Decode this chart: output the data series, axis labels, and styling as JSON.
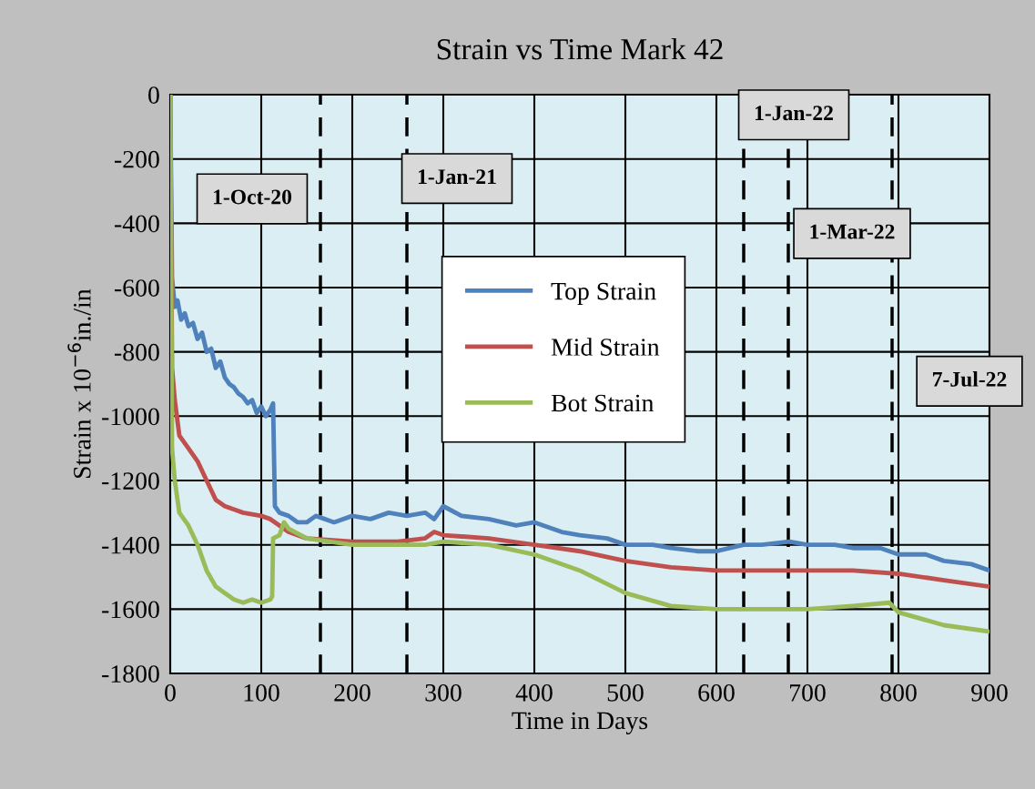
{
  "chart_data": {
    "type": "line",
    "title": "Strain vs Time Mark 42",
    "xlabel": "Time in Days",
    "ylabel": "Strain x 10$^{−6}$in./in",
    "xlim": [
      0,
      900
    ],
    "xticks": [
      0,
      100,
      200,
      300,
      400,
      500,
      600,
      700,
      800,
      900
    ],
    "ylim": [
      -1800,
      0
    ],
    "yticks": [
      -1800,
      -1600,
      -1400,
      -1200,
      -1000,
      -800,
      -600,
      -400,
      -200,
      0
    ],
    "grid": true,
    "legend": "center",
    "line_style": "solid",
    "marker": "none",
    "series": [
      {
        "name": "Top Strain",
        "color": "#4f81bd",
        "x": [
          0,
          2,
          5,
          8,
          12,
          16,
          20,
          25,
          30,
          35,
          40,
          45,
          50,
          55,
          60,
          65,
          70,
          75,
          80,
          85,
          90,
          95,
          100,
          105,
          110,
          113,
          115,
          120,
          130,
          140,
          150,
          160,
          180,
          200,
          220,
          240,
          260,
          280,
          290,
          300,
          320,
          350,
          380,
          400,
          430,
          450,
          480,
          500,
          530,
          550,
          580,
          600,
          630,
          650,
          680,
          700,
          730,
          750,
          780,
          800,
          830,
          850,
          880,
          900
        ],
        "values": [
          0,
          -570,
          -660,
          -640,
          -700,
          -680,
          -720,
          -710,
          -760,
          -740,
          -800,
          -790,
          -850,
          -830,
          -880,
          -900,
          -910,
          -930,
          -940,
          -960,
          -950,
          -990,
          -970,
          -1000,
          -980,
          -960,
          -1280,
          -1300,
          -1310,
          -1330,
          -1330,
          -1310,
          -1330,
          -1310,
          -1320,
          -1300,
          -1310,
          -1300,
          -1320,
          -1280,
          -1310,
          -1320,
          -1340,
          -1330,
          -1360,
          -1370,
          -1380,
          -1400,
          -1400,
          -1410,
          -1420,
          -1420,
          -1400,
          -1400,
          -1390,
          -1400,
          -1400,
          -1410,
          -1410,
          -1430,
          -1430,
          -1450,
          -1460,
          -1480
        ]
      },
      {
        "name": "Mid Strain",
        "color": "#c0504d",
        "x": [
          0,
          2,
          5,
          10,
          15,
          20,
          30,
          40,
          50,
          60,
          70,
          80,
          100,
          110,
          120,
          130,
          150,
          200,
          250,
          280,
          290,
          300,
          350,
          400,
          450,
          500,
          550,
          600,
          650,
          700,
          750,
          800,
          850,
          900
        ],
        "values": [
          0,
          -850,
          -950,
          -1060,
          -1080,
          -1100,
          -1140,
          -1200,
          -1260,
          -1280,
          -1290,
          -1300,
          -1310,
          -1320,
          -1340,
          -1360,
          -1380,
          -1390,
          -1390,
          -1380,
          -1360,
          -1370,
          -1380,
          -1400,
          -1420,
          -1450,
          -1470,
          -1480,
          -1480,
          -1480,
          -1480,
          -1490,
          -1510,
          -1530
        ]
      },
      {
        "name": "Bot Strain",
        "color": "#9bbb59",
        "x": [
          0,
          2,
          5,
          10,
          20,
          30,
          40,
          50,
          60,
          70,
          80,
          90,
          100,
          110,
          112,
          113,
          120,
          125,
          130,
          150,
          200,
          250,
          280,
          300,
          350,
          400,
          450,
          500,
          550,
          600,
          650,
          700,
          750,
          790,
          800,
          850,
          900
        ],
        "values": [
          0,
          -1100,
          -1200,
          -1300,
          -1340,
          -1400,
          -1480,
          -1530,
          -1550,
          -1570,
          -1580,
          -1570,
          -1580,
          -1570,
          -1560,
          -1380,
          -1370,
          -1330,
          -1350,
          -1380,
          -1400,
          -1400,
          -1400,
          -1390,
          -1400,
          -1430,
          -1480,
          -1550,
          -1590,
          -1600,
          -1600,
          -1600,
          -1590,
          -1580,
          -1610,
          -1650,
          -1670
        ]
      }
    ],
    "ref_lines": [
      {
        "axis": "x",
        "value": 165,
        "label": "1-Oct-20",
        "color": "#000000",
        "line_style": "dashed"
      },
      {
        "axis": "x",
        "value": 260,
        "label": "1-Jan-21",
        "color": "#000000",
        "line_style": "dashed"
      },
      {
        "axis": "x",
        "value": 630,
        "label": "1-Jan-22",
        "color": "#000000",
        "line_style": "dashed"
      },
      {
        "axis": "x",
        "value": 679,
        "label": "1-Mar-22",
        "color": "#000000",
        "line_style": "dashed"
      },
      {
        "axis": "x",
        "value": 793,
        "label": "7-Jul-22",
        "color": "#000000",
        "line_style": "dashed"
      }
    ]
  }
}
